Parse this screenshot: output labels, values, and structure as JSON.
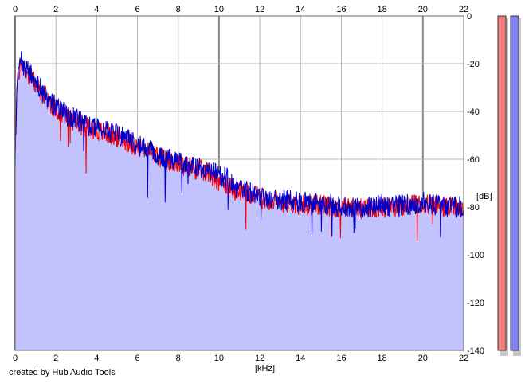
{
  "chart_data": {
    "type": "line",
    "title": "",
    "xlabel": "[kHz]",
    "ylabel": "[dB]",
    "xlim": [
      0,
      22
    ],
    "ylim": [
      -140,
      0
    ],
    "x_ticks": [
      "0",
      "2",
      "4",
      "6",
      "8",
      "10",
      "12",
      "14",
      "16",
      "18",
      "20",
      "22"
    ],
    "y_ticks": [
      "0",
      "-20",
      "-40",
      "-60",
      "-80",
      "-100",
      "-120",
      "-140"
    ],
    "grid": true,
    "legend": "none",
    "series": [
      {
        "color": "#ff0000",
        "x": [
          0,
          0.05,
          0.1,
          0.2,
          0.3,
          0.4,
          0.6,
          0.8,
          1.0,
          1.2,
          1.5,
          1.8,
          2.0,
          2.3,
          2.6,
          3.0,
          3.3,
          3.6,
          4.0,
          4.4,
          4.8,
          5.2,
          5.6,
          6.0,
          6.4,
          6.8,
          7.2,
          7.6,
          8.0,
          8.4,
          8.8,
          9.2,
          9.6,
          10.0,
          10.4,
          10.8,
          11.2,
          11.6,
          12.0,
          12.5,
          13.0,
          13.5,
          14.0,
          14.5,
          15.0,
          15.5,
          16.0,
          16.5,
          17.0,
          17.5,
          18.0,
          18.5,
          19.0,
          19.5,
          20.0,
          20.5,
          21.0,
          21.5,
          22.0
        ],
        "y": [
          -55,
          -40,
          -30,
          -23,
          -18,
          -22,
          -24,
          -26,
          -28,
          -31,
          -34,
          -37,
          -39,
          -41,
          -43,
          -44,
          -46,
          -47,
          -48,
          -49,
          -50,
          -51,
          -53,
          -55,
          -56,
          -58,
          -60,
          -61,
          -62,
          -63,
          -64,
          -65,
          -66,
          -69,
          -71,
          -73,
          -74,
          -75,
          -76,
          -77,
          -78,
          -78,
          -79,
          -79,
          -79,
          -80,
          -80,
          -80,
          -81,
          -80,
          -80,
          -80,
          -80,
          -79,
          -79,
          -79,
          -80,
          -80,
          -81
        ]
      },
      {
        "color": "#0000cc",
        "x": [
          0,
          0.05,
          0.1,
          0.2,
          0.3,
          0.4,
          0.6,
          0.8,
          1.0,
          1.2,
          1.5,
          1.8,
          2.0,
          2.3,
          2.6,
          3.0,
          3.3,
          3.6,
          4.0,
          4.4,
          4.8,
          5.2,
          5.6,
          6.0,
          6.4,
          6.8,
          7.2,
          7.6,
          8.0,
          8.4,
          8.8,
          9.2,
          9.6,
          10.0,
          10.4,
          10.8,
          11.2,
          11.6,
          12.0,
          12.5,
          13.0,
          13.5,
          14.0,
          14.5,
          15.0,
          15.5,
          16.0,
          16.5,
          17.0,
          17.5,
          18.0,
          18.5,
          19.0,
          19.5,
          20.0,
          20.5,
          21.0,
          21.5,
          22.0
        ],
        "y": [
          -58,
          -42,
          -31,
          -22,
          -17,
          -21,
          -23,
          -25,
          -27,
          -30,
          -33,
          -36,
          -38,
          -40,
          -42,
          -43,
          -45,
          -46,
          -47,
          -48,
          -49,
          -50,
          -52,
          -54,
          -55,
          -57,
          -59,
          -60,
          -61,
          -62,
          -63,
          -64,
          -65,
          -67,
          -68,
          -72,
          -73,
          -74,
          -75,
          -76,
          -77,
          -77,
          -78,
          -78,
          -79,
          -79,
          -80,
          -80,
          -80,
          -80,
          -79,
          -80,
          -79,
          -79,
          -78,
          -79,
          -80,
          -80,
          -80
        ]
      }
    ]
  },
  "meters": {
    "left_color": "#f08080",
    "right_color": "#8080f0"
  },
  "footer": {
    "credit": "created by Hub Audio Tools"
  }
}
